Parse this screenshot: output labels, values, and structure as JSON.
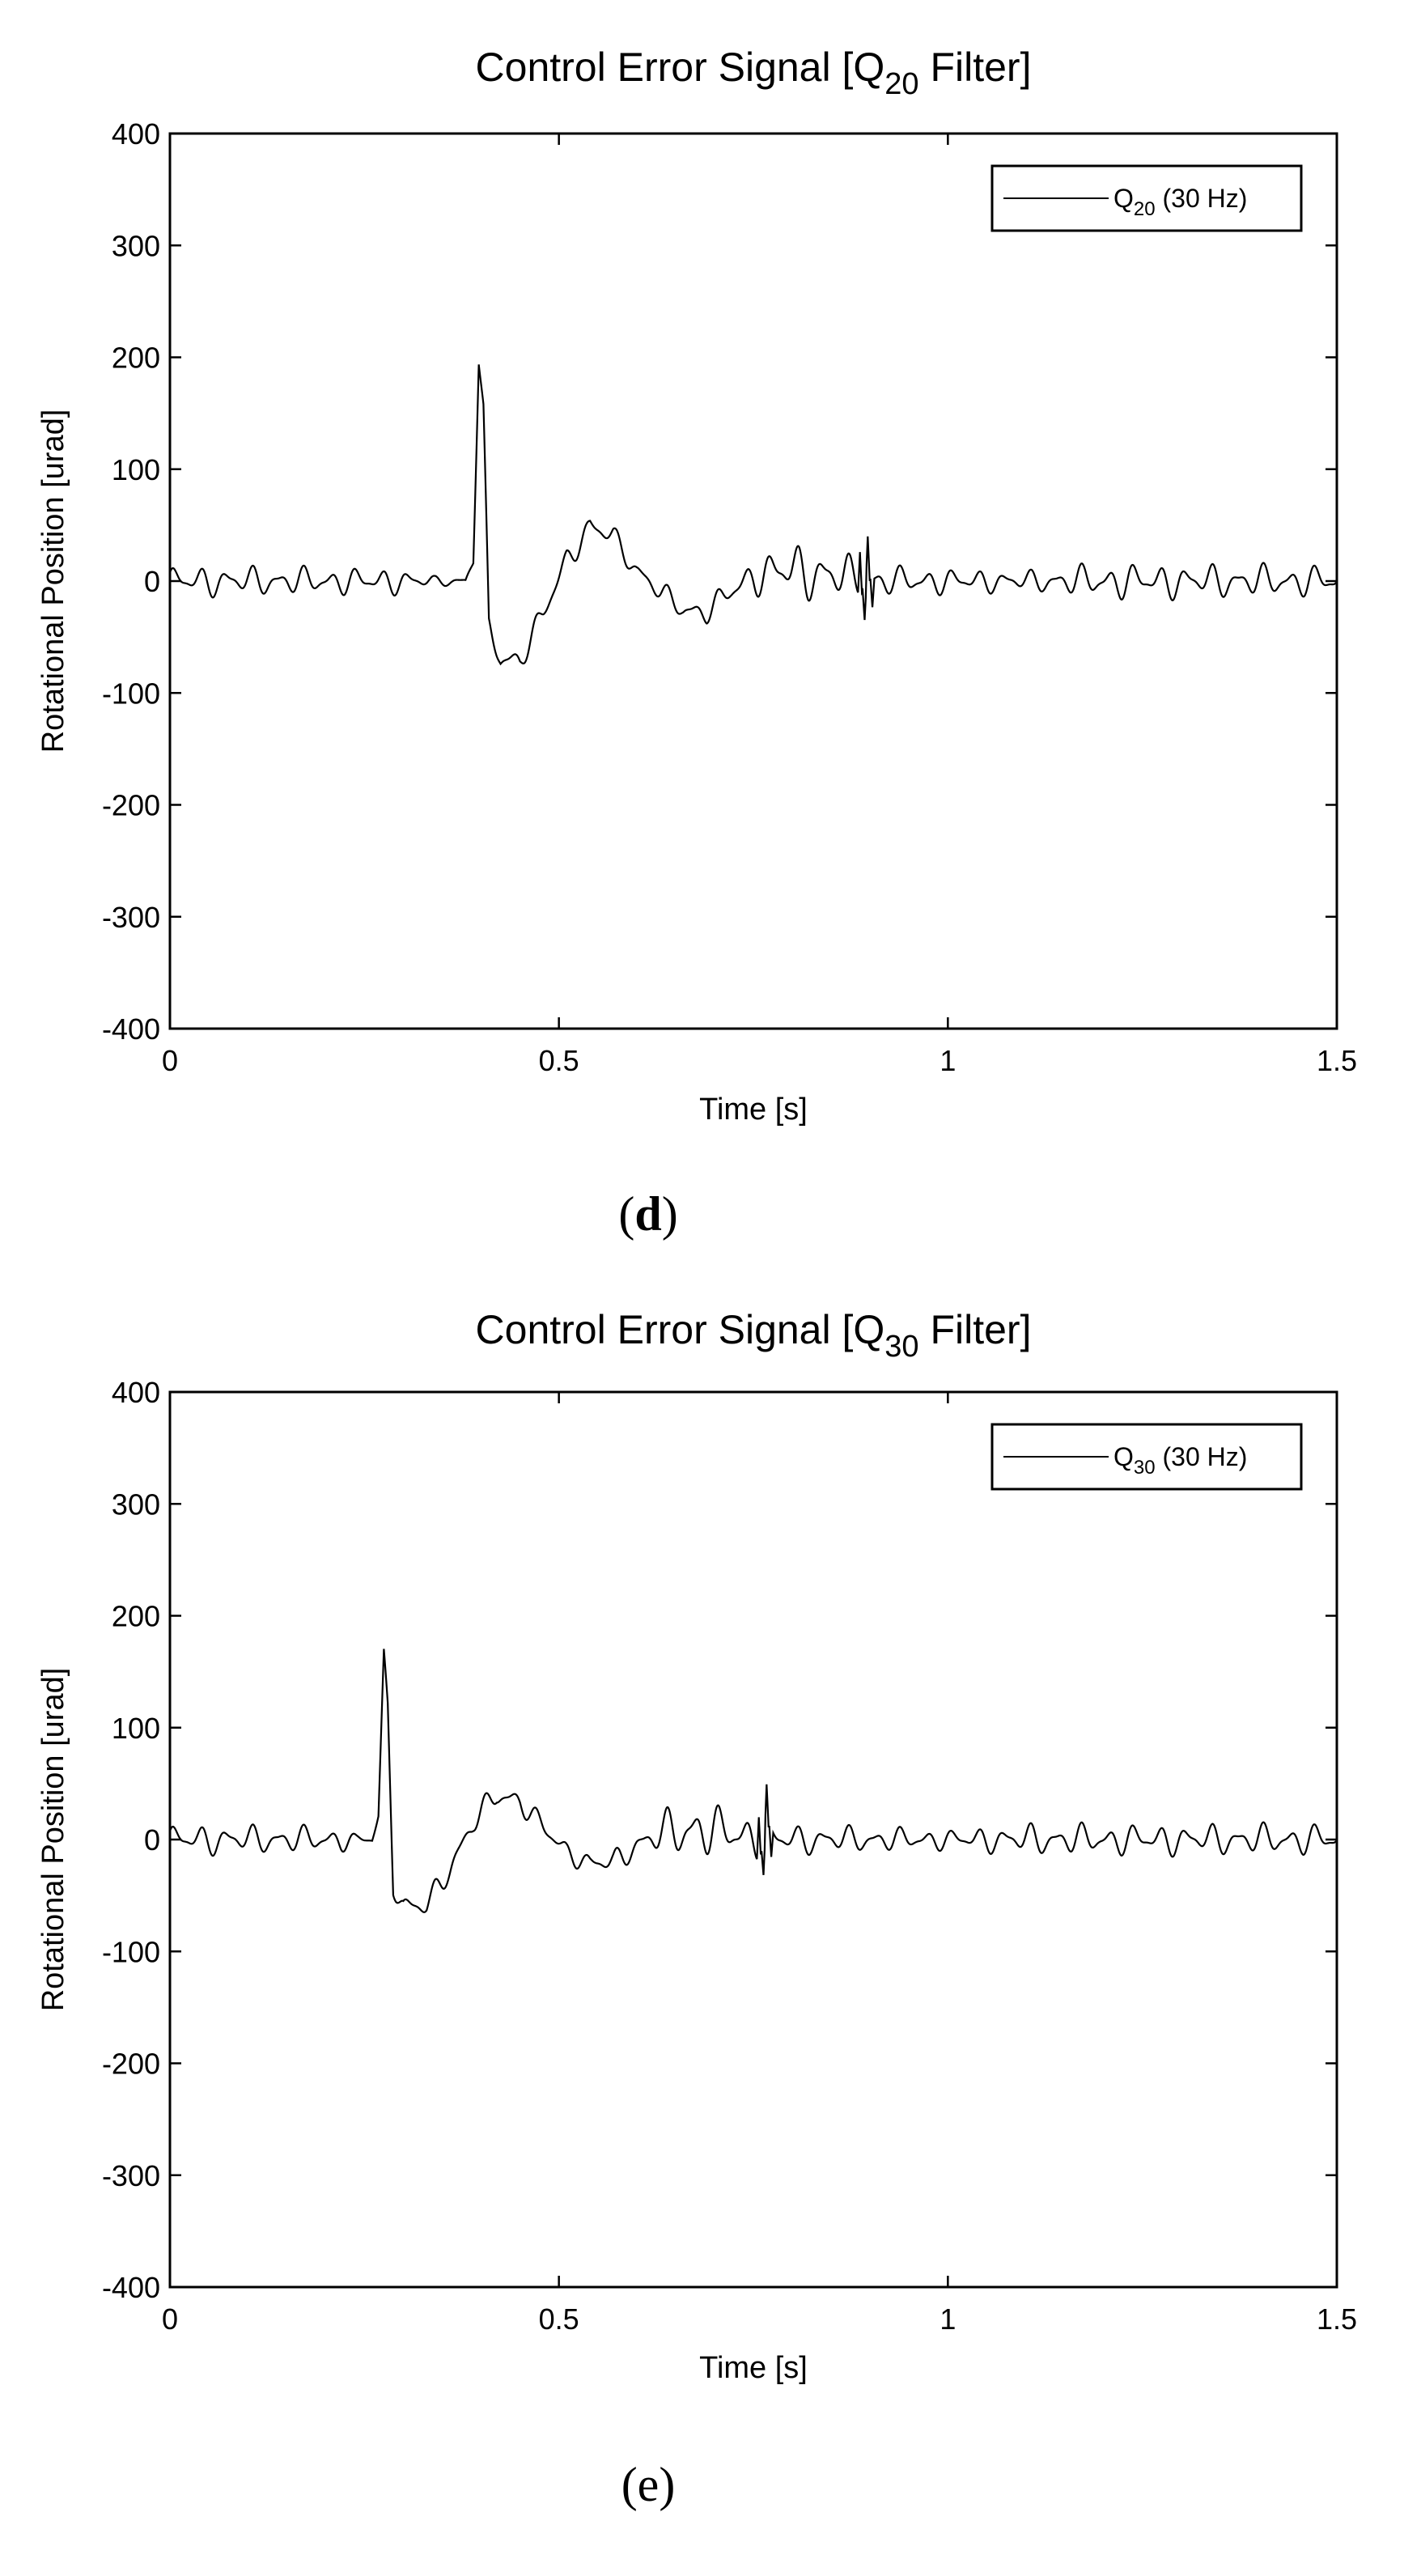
{
  "chart_data": [
    {
      "type": "line",
      "panel_label": "d",
      "title": {
        "main": "Control Error Signal [Q",
        "sub": "20",
        "rest": " Filter]"
      },
      "xlabel": "Time [s]",
      "ylabel": "Rotational Position [urad]",
      "xlim": [
        0,
        1.5
      ],
      "ylim": [
        -400,
        400
      ],
      "xticks": [
        0,
        0.5,
        1,
        1.5
      ],
      "xtick_labels": [
        "0",
        "0.5",
        "1",
        "1.5"
      ],
      "yticks": [
        -400,
        -300,
        -200,
        -100,
        0,
        100,
        200,
        300,
        400
      ],
      "ytick_labels": [
        "-400",
        "-300",
        "-200",
        "-100",
        "0",
        "100",
        "200",
        "300",
        "400"
      ],
      "grid": false,
      "legend_position": "top-right",
      "series": [
        {
          "name": {
            "main": "Q",
            "sub": "20",
            "rest": " (30 Hz)"
          },
          "color": "#000000",
          "keypoints": [
            [
              0,
              0
            ],
            [
              0.38,
              0
            ],
            [
              0.39,
              20
            ],
            [
              0.397,
              195
            ],
            [
              0.403,
              150
            ],
            [
              0.41,
              -40
            ],
            [
              0.425,
              -70
            ],
            [
              0.45,
              -70
            ],
            [
              0.48,
              -30
            ],
            [
              0.51,
              20
            ],
            [
              0.54,
              48
            ],
            [
              0.57,
              40
            ],
            [
              0.6,
              10
            ],
            [
              0.63,
              -10
            ],
            [
              0.66,
              -25
            ],
            [
              0.69,
              -28
            ],
            [
              0.72,
              -10
            ],
            [
              0.75,
              5
            ],
            [
              0.8,
              10
            ],
            [
              0.85,
              5
            ],
            [
              0.9,
              0
            ],
            [
              1.5,
              0
            ]
          ],
          "oscillation": [
            [
              0,
              12
            ],
            [
              0.3,
              10
            ],
            [
              0.34,
              4
            ],
            [
              0.38,
              4
            ],
            [
              0.42,
              10
            ],
            [
              0.55,
              10
            ],
            [
              0.6,
              8
            ],
            [
              0.72,
              10
            ],
            [
              0.8,
              22
            ],
            [
              0.87,
              18
            ],
            [
              0.9,
              12
            ],
            [
              1.1,
              8
            ],
            [
              1.2,
              14
            ],
            [
              1.5,
              12
            ]
          ],
          "spikes": [
            [
              0.887,
              38
            ],
            [
              0.893,
              -30
            ],
            [
              0.897,
              40
            ],
            [
              0.903,
              -25
            ]
          ]
        }
      ]
    },
    {
      "type": "line",
      "panel_label": "e",
      "title": {
        "main": "Control Error Signal [Q",
        "sub": "30",
        "rest": " Filter]"
      },
      "xlabel": "Time [s]",
      "ylabel": "Rotational Position [urad]",
      "xlim": [
        0,
        1.5
      ],
      "ylim": [
        -400,
        400
      ],
      "xticks": [
        0,
        0.5,
        1,
        1.5
      ],
      "xtick_labels": [
        "0",
        "0.5",
        "1",
        "1.5"
      ],
      "yticks": [
        -400,
        -300,
        -200,
        -100,
        0,
        100,
        200,
        300,
        400
      ],
      "ytick_labels": [
        "-400",
        "-300",
        "-200",
        "-100",
        "0",
        "100",
        "200",
        "300",
        "400"
      ],
      "grid": false,
      "legend_position": "top-right",
      "series": [
        {
          "name": {
            "main": "Q",
            "sub": "30",
            "rest": " (30 Hz)"
          },
          "color": "#000000",
          "keypoints": [
            [
              0,
              0
            ],
            [
              0.26,
              0
            ],
            [
              0.268,
              20
            ],
            [
              0.275,
              165
            ],
            [
              0.28,
              120
            ],
            [
              0.287,
              -40
            ],
            [
              0.3,
              -60
            ],
            [
              0.33,
              -60
            ],
            [
              0.36,
              -25
            ],
            [
              0.39,
              15
            ],
            [
              0.42,
              40
            ],
            [
              0.45,
              35
            ],
            [
              0.48,
              10
            ],
            [
              0.51,
              -10
            ],
            [
              0.54,
              -22
            ],
            [
              0.57,
              -20
            ],
            [
              0.6,
              -5
            ],
            [
              0.63,
              5
            ],
            [
              0.68,
              10
            ],
            [
              0.72,
              5
            ],
            [
              0.77,
              0
            ],
            [
              1.5,
              0
            ]
          ],
          "oscillation": [
            [
              0,
              12
            ],
            [
              0.22,
              10
            ],
            [
              0.24,
              4
            ],
            [
              0.26,
              4
            ],
            [
              0.3,
              10
            ],
            [
              0.45,
              10
            ],
            [
              0.5,
              8
            ],
            [
              0.6,
              10
            ],
            [
              0.66,
              22
            ],
            [
              0.74,
              18
            ],
            [
              0.78,
              12
            ],
            [
              1.0,
              8
            ],
            [
              1.1,
              12
            ],
            [
              1.5,
              12
            ]
          ],
          "spikes": [
            [
              0.757,
              38
            ],
            [
              0.763,
              -30
            ],
            [
              0.767,
              40
            ],
            [
              0.773,
              -25
            ]
          ]
        }
      ]
    }
  ]
}
